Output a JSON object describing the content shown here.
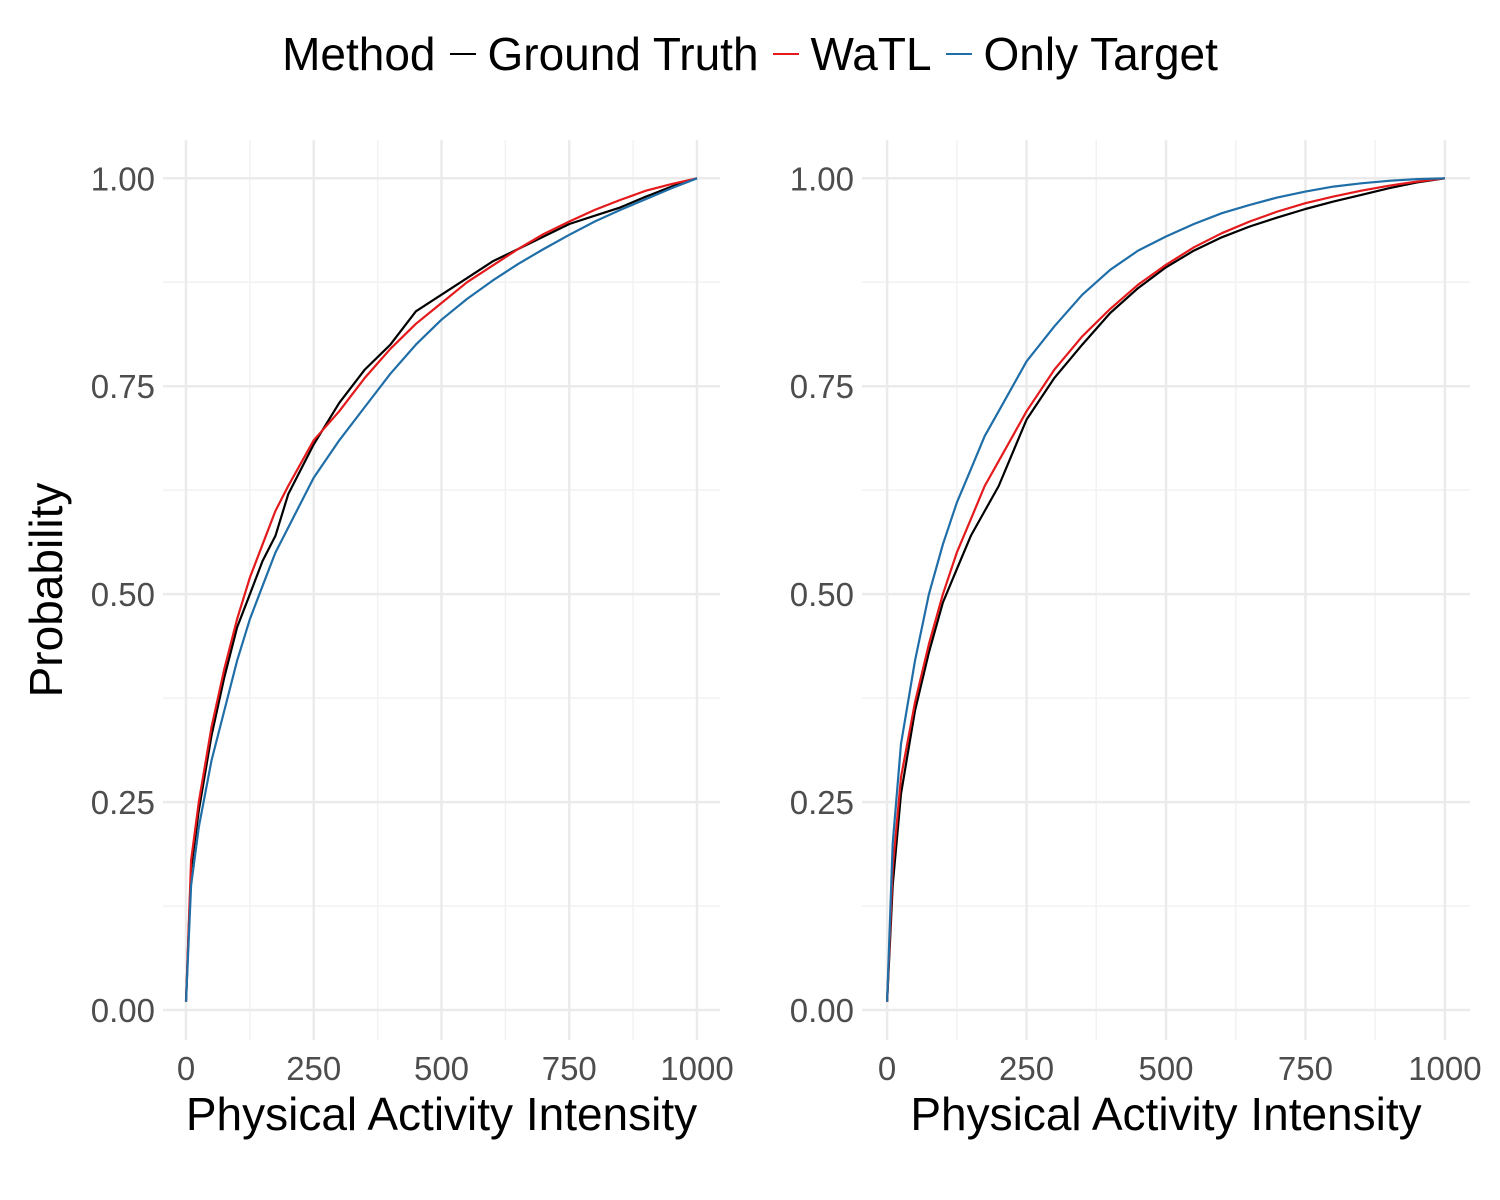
{
  "legend": {
    "title": "Method",
    "entries": [
      {
        "label": "Ground Truth",
        "color": "#000000"
      },
      {
        "label": "WaTL",
        "color": "#e41a1c"
      },
      {
        "label": "Only Target",
        "color": "#1f6ea8"
      }
    ]
  },
  "chart_data": [
    {
      "type": "line",
      "xlabel": "Physical Activity Intensity",
      "ylabel": "Probability",
      "xlim": [
        -45,
        1045
      ],
      "ylim": [
        -0.036,
        1.046
      ],
      "x_ticks": [
        0,
        250,
        500,
        750,
        1000
      ],
      "y_ticks": [
        0.0,
        0.25,
        0.5,
        0.75,
        1.0
      ],
      "x_tick_labels": [
        "0",
        "250",
        "500",
        "750",
        "1000"
      ],
      "y_tick_labels": [
        "0.00",
        "0.25",
        "0.50",
        "0.75",
        "1.00"
      ],
      "grid": true,
      "series": [
        {
          "name": "Ground Truth",
          "color": "#000000",
          "x": [
            0,
            10,
            25,
            50,
            75,
            100,
            125,
            150,
            175,
            200,
            250,
            300,
            350,
            400,
            450,
            500,
            550,
            600,
            650,
            700,
            750,
            800,
            850,
            900,
            950,
            1000
          ],
          "y": [
            0.01,
            0.17,
            0.24,
            0.33,
            0.4,
            0.46,
            0.5,
            0.54,
            0.57,
            0.62,
            0.68,
            0.73,
            0.77,
            0.8,
            0.84,
            0.86,
            0.88,
            0.9,
            0.915,
            0.93,
            0.945,
            0.955,
            0.965,
            0.978,
            0.99,
            1.0
          ]
        },
        {
          "name": "WaTL",
          "color": "#e41a1c",
          "x": [
            0,
            10,
            25,
            50,
            75,
            100,
            125,
            150,
            175,
            200,
            250,
            300,
            350,
            400,
            450,
            500,
            550,
            600,
            650,
            700,
            750,
            800,
            850,
            900,
            950,
            1000
          ],
          "y": [
            0.01,
            0.18,
            0.25,
            0.34,
            0.41,
            0.47,
            0.52,
            0.56,
            0.6,
            0.63,
            0.685,
            0.72,
            0.76,
            0.795,
            0.825,
            0.85,
            0.875,
            0.895,
            0.915,
            0.933,
            0.948,
            0.962,
            0.974,
            0.985,
            0.993,
            1.0
          ]
        },
        {
          "name": "Only Target",
          "color": "#1f6ea8",
          "x": [
            0,
            10,
            25,
            50,
            75,
            100,
            125,
            150,
            175,
            200,
            250,
            300,
            350,
            400,
            450,
            500,
            550,
            600,
            650,
            700,
            750,
            800,
            850,
            900,
            950,
            1000
          ],
          "y": [
            0.01,
            0.15,
            0.22,
            0.3,
            0.36,
            0.42,
            0.47,
            0.51,
            0.55,
            0.58,
            0.64,
            0.685,
            0.725,
            0.765,
            0.8,
            0.83,
            0.855,
            0.877,
            0.897,
            0.915,
            0.932,
            0.948,
            0.962,
            0.975,
            0.988,
            1.0
          ]
        }
      ]
    },
    {
      "type": "line",
      "xlabel": "Physical Activity Intensity",
      "ylabel": "",
      "xlim": [
        -45,
        1045
      ],
      "ylim": [
        -0.036,
        1.046
      ],
      "x_ticks": [
        0,
        250,
        500,
        750,
        1000
      ],
      "y_ticks": [
        0.0,
        0.25,
        0.5,
        0.75,
        1.0
      ],
      "x_tick_labels": [
        "0",
        "250",
        "500",
        "750",
        "1000"
      ],
      "y_tick_labels": [
        "0.00",
        "0.25",
        "0.50",
        "0.75",
        "1.00"
      ],
      "grid": true,
      "series": [
        {
          "name": "Ground Truth",
          "color": "#000000",
          "x": [
            0,
            10,
            25,
            50,
            75,
            100,
            125,
            150,
            175,
            200,
            250,
            300,
            350,
            400,
            450,
            500,
            550,
            600,
            650,
            700,
            750,
            800,
            850,
            900,
            950,
            1000
          ],
          "y": [
            0.01,
            0.15,
            0.26,
            0.36,
            0.43,
            0.49,
            0.53,
            0.57,
            0.6,
            0.63,
            0.71,
            0.76,
            0.8,
            0.838,
            0.868,
            0.893,
            0.913,
            0.929,
            0.942,
            0.953,
            0.963,
            0.972,
            0.98,
            0.988,
            0.995,
            1.0
          ]
        },
        {
          "name": "WaTL",
          "color": "#e41a1c",
          "x": [
            0,
            10,
            25,
            50,
            75,
            100,
            125,
            150,
            175,
            200,
            250,
            300,
            350,
            400,
            450,
            500,
            550,
            600,
            650,
            700,
            750,
            800,
            850,
            900,
            950,
            1000
          ],
          "y": [
            0.01,
            0.17,
            0.28,
            0.37,
            0.44,
            0.5,
            0.55,
            0.59,
            0.63,
            0.66,
            0.72,
            0.77,
            0.81,
            0.843,
            0.872,
            0.896,
            0.917,
            0.934,
            0.948,
            0.96,
            0.97,
            0.978,
            0.985,
            0.991,
            0.996,
            1.0
          ]
        },
        {
          "name": "Only Target",
          "color": "#1f6ea8",
          "x": [
            0,
            10,
            25,
            50,
            75,
            100,
            125,
            150,
            175,
            200,
            250,
            300,
            350,
            400,
            450,
            500,
            550,
            600,
            650,
            700,
            750,
            800,
            850,
            900,
            950,
            1000
          ],
          "y": [
            0.01,
            0.2,
            0.32,
            0.42,
            0.5,
            0.56,
            0.61,
            0.65,
            0.69,
            0.72,
            0.78,
            0.822,
            0.86,
            0.89,
            0.913,
            0.93,
            0.945,
            0.958,
            0.968,
            0.977,
            0.984,
            0.99,
            0.994,
            0.997,
            0.999,
            1.0
          ]
        }
      ]
    }
  ]
}
